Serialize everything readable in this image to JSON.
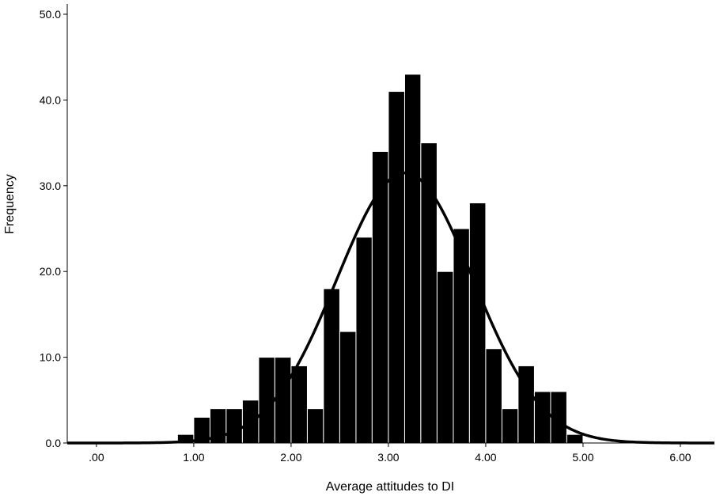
{
  "chart_data": {
    "type": "bar",
    "subtype": "histogram",
    "title": "",
    "xlabel": "Average attitudes to DI",
    "ylabel": "Frequency",
    "xlim": [
      -0.3,
      6.35
    ],
    "ylim": [
      0,
      50
    ],
    "x_ticks": [
      {
        "value": 0,
        "label": ".00"
      },
      {
        "value": 1,
        "label": "1.00"
      },
      {
        "value": 2,
        "label": "2.00"
      },
      {
        "value": 3,
        "label": "3.00"
      },
      {
        "value": 4,
        "label": "4.00"
      },
      {
        "value": 5,
        "label": "5.00"
      },
      {
        "value": 6,
        "label": "6.00"
      }
    ],
    "y_ticks": [
      {
        "value": 0,
        "label": "0.0"
      },
      {
        "value": 10,
        "label": "10.0"
      },
      {
        "value": 20,
        "label": "20.0"
      },
      {
        "value": 30,
        "label": "30.0"
      },
      {
        "value": 40,
        "label": "40.0"
      },
      {
        "value": 50,
        "label": "50.0"
      }
    ],
    "bin_width": 0.1667,
    "bins": [
      {
        "start": 0.833,
        "end": 1.0,
        "count": 1
      },
      {
        "start": 1.0,
        "end": 1.167,
        "count": 3
      },
      {
        "start": 1.167,
        "end": 1.333,
        "count": 4
      },
      {
        "start": 1.333,
        "end": 1.5,
        "count": 4
      },
      {
        "start": 1.5,
        "end": 1.667,
        "count": 5
      },
      {
        "start": 1.667,
        "end": 1.833,
        "count": 10
      },
      {
        "start": 1.833,
        "end": 2.0,
        "count": 10
      },
      {
        "start": 2.0,
        "end": 2.167,
        "count": 9
      },
      {
        "start": 2.167,
        "end": 2.333,
        "count": 4
      },
      {
        "start": 2.333,
        "end": 2.5,
        "count": 18
      },
      {
        "start": 2.5,
        "end": 2.667,
        "count": 13
      },
      {
        "start": 2.667,
        "end": 2.833,
        "count": 24
      },
      {
        "start": 2.833,
        "end": 3.0,
        "count": 34
      },
      {
        "start": 3.0,
        "end": 3.167,
        "count": 41
      },
      {
        "start": 3.167,
        "end": 3.333,
        "count": 43
      },
      {
        "start": 3.333,
        "end": 3.5,
        "count": 35
      },
      {
        "start": 3.5,
        "end": 3.667,
        "count": 20
      },
      {
        "start": 3.667,
        "end": 3.833,
        "count": 25
      },
      {
        "start": 3.833,
        "end": 4.0,
        "count": 28
      },
      {
        "start": 4.0,
        "end": 4.167,
        "count": 11
      },
      {
        "start": 4.167,
        "end": 4.333,
        "count": 4
      },
      {
        "start": 4.333,
        "end": 4.5,
        "count": 9
      },
      {
        "start": 4.5,
        "end": 4.667,
        "count": 6
      },
      {
        "start": 4.667,
        "end": 4.833,
        "count": 6
      },
      {
        "start": 4.833,
        "end": 5.0,
        "count": 1
      }
    ],
    "normal_curve": {
      "mean": 3.17,
      "std": 0.7,
      "peak": 31.5
    },
    "grid": false,
    "legend": "none",
    "bar_color": "#000000",
    "bar_edge_color": "#ffffff",
    "curve_color": "#000000"
  }
}
